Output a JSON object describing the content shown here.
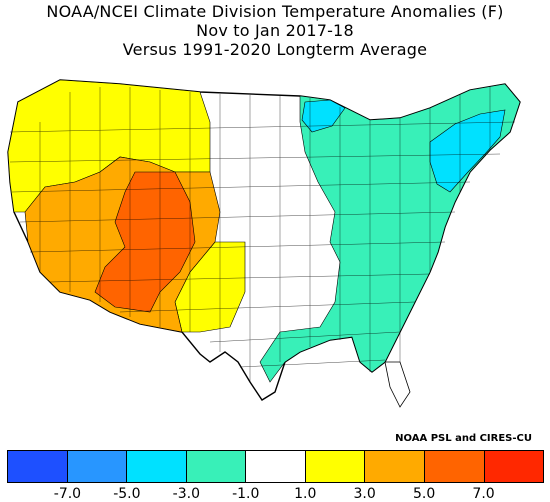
{
  "title": {
    "line1": "NOAA/NCEI Climate Division Temperature Anomalies (F)",
    "line2": "Nov to Jan 2017-18",
    "line3": "Versus 1991-2020 Longterm Average"
  },
  "credit": "NOAA PSL and CIRES-CU",
  "legend": {
    "bins": [
      {
        "color": "#1e50ff"
      },
      {
        "color": "#2896ff"
      },
      {
        "color": "#00e1ff"
      },
      {
        "color": "#38f0b8"
      },
      {
        "color": "#ffffff"
      },
      {
        "color": "#ffff00"
      },
      {
        "color": "#ffaa00"
      },
      {
        "color": "#ff6400"
      },
      {
        "color": "#ff2800"
      }
    ],
    "ticks": [
      "-7.0",
      "-5.0",
      "-3.0",
      "-1.0",
      "1.0",
      "3.0",
      "5.0",
      "7.0"
    ]
  },
  "map": {
    "regions": [
      {
        "name": "pacific-northwest-coast",
        "anomaly_class": "+1 to +3",
        "color": "#ffff00"
      },
      {
        "name": "california-nevada",
        "anomaly_class": "+3 to +5",
        "color": "#ffaa00"
      },
      {
        "name": "four-corners-core",
        "anomaly_class": "+5 to +7",
        "color": "#ff6400"
      },
      {
        "name": "plains-midwest",
        "anomaly_class": "-1 to +1",
        "color": "#ffffff"
      },
      {
        "name": "east-and-south",
        "anomaly_class": "-3 to -1",
        "color": "#38f0b8"
      },
      {
        "name": "northeast",
        "anomaly_class": "-5 to -3",
        "color": "#00e1ff"
      },
      {
        "name": "northern-minnesota",
        "anomaly_class": "-5 to -3",
        "color": "#00e1ff"
      }
    ]
  }
}
